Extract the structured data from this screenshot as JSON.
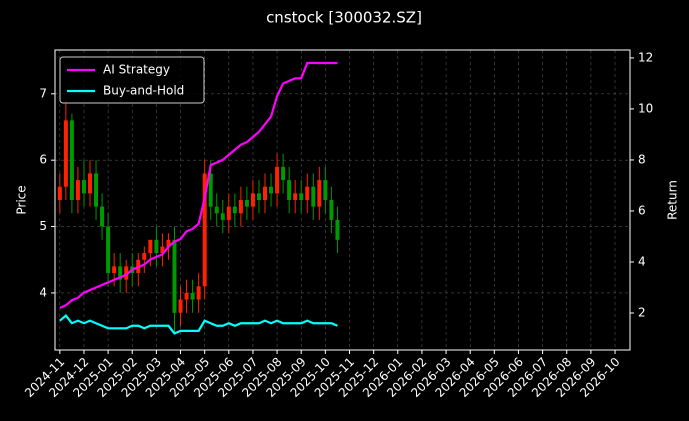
{
  "chart_data": {
    "type": "candlestick",
    "title": "cnstock [300032.SZ]",
    "ylabel": "Price",
    "y2label": "Return",
    "x": [
      0,
      0.25,
      0.5,
      0.75,
      1,
      1.25,
      1.5,
      1.75,
      2,
      2.25,
      2.5,
      2.75,
      3,
      3.25,
      3.5,
      3.75,
      4,
      4.25,
      4.5,
      4.75,
      5,
      5.25,
      5.5,
      5.75,
      6,
      6.25,
      6.5,
      6.75,
      7,
      7.25,
      7.5,
      7.75,
      8,
      8.25,
      8.5,
      8.75,
      9,
      9.25,
      9.5,
      9.75,
      10,
      10.25,
      10.5,
      10.75,
      11,
      11.25,
      11.5
    ],
    "open": [
      5.4,
      5.6,
      6.6,
      5.4,
      5.7,
      5.5,
      5.8,
      5.3,
      5.0,
      4.3,
      4.4,
      4.2,
      4.4,
      4.3,
      4.5,
      4.6,
      4.8,
      4.6,
      4.7,
      4.8,
      3.7,
      3.9,
      4.0,
      3.9,
      4.1,
      5.8,
      5.3,
      5.2,
      5.1,
      5.3,
      5.2,
      5.4,
      5.3,
      5.5,
      5.4,
      5.6,
      5.5,
      5.9,
      5.7,
      5.4,
      5.5,
      5.4,
      5.6,
      5.3,
      5.7,
      5.4,
      5.1
    ],
    "high": [
      5.8,
      6.9,
      6.7,
      5.9,
      6.0,
      6.0,
      6.0,
      5.5,
      5.2,
      4.6,
      4.6,
      4.5,
      4.6,
      4.6,
      4.7,
      4.8,
      5.0,
      4.9,
      4.9,
      5.0,
      4.1,
      4.2,
      4.2,
      4.3,
      6.0,
      6.0,
      5.5,
      5.4,
      5.5,
      5.5,
      5.6,
      5.6,
      5.7,
      5.7,
      5.8,
      5.8,
      6.1,
      6.1,
      5.9,
      5.7,
      5.7,
      5.8,
      5.8,
      5.9,
      5.9,
      5.6,
      5.3
    ],
    "low": [
      5.2,
      5.4,
      5.2,
      5.2,
      5.3,
      5.3,
      5.1,
      4.8,
      4.1,
      4.1,
      4.0,
      4.0,
      4.1,
      4.1,
      4.3,
      4.4,
      4.4,
      4.4,
      4.5,
      3.4,
      3.5,
      3.7,
      3.7,
      3.7,
      3.9,
      5.1,
      5.0,
      4.9,
      4.9,
      5.0,
      5.0,
      5.1,
      5.1,
      5.2,
      5.2,
      5.3,
      5.3,
      5.5,
      5.2,
      5.2,
      5.2,
      5.2,
      5.1,
      5.1,
      5.2,
      4.9,
      4.6
    ],
    "close": [
      5.6,
      6.6,
      5.4,
      5.7,
      5.5,
      5.8,
      5.3,
      5.0,
      4.3,
      4.4,
      4.2,
      4.4,
      4.3,
      4.5,
      4.6,
      4.8,
      4.6,
      4.7,
      4.8,
      3.7,
      3.9,
      4.0,
      3.9,
      4.1,
      5.8,
      5.3,
      5.2,
      5.1,
      5.3,
      5.2,
      5.4,
      5.3,
      5.5,
      5.4,
      5.6,
      5.5,
      5.9,
      5.7,
      5.4,
      5.5,
      5.4,
      5.6,
      5.3,
      5.7,
      5.4,
      5.1,
      4.8
    ],
    "up_color": "#ff2200",
    "down_color": "#009900",
    "series": [
      {
        "name": "AI Strategy",
        "color": "#ff00ff",
        "axis": "y2",
        "values": [
          2.2,
          2.3,
          2.5,
          2.6,
          2.8,
          2.9,
          3.0,
          3.1,
          3.2,
          3.3,
          3.4,
          3.5,
          3.7,
          3.8,
          3.9,
          4.1,
          4.2,
          4.3,
          4.6,
          4.8,
          4.9,
          5.2,
          5.3,
          5.5,
          6.5,
          7.8,
          7.9,
          8.0,
          8.2,
          8.4,
          8.6,
          8.7,
          8.9,
          9.1,
          9.4,
          9.7,
          10.5,
          11.0,
          11.1,
          11.2,
          11.2,
          11.8,
          11.8,
          11.8,
          11.8,
          11.8,
          11.8
        ]
      },
      {
        "name": "Buy-and-Hold",
        "color": "#00ffff",
        "axis": "y2",
        "values": [
          1.7,
          1.9,
          1.6,
          1.7,
          1.6,
          1.7,
          1.6,
          1.5,
          1.4,
          1.4,
          1.4,
          1.4,
          1.5,
          1.5,
          1.4,
          1.5,
          1.5,
          1.5,
          1.5,
          1.2,
          1.3,
          1.3,
          1.3,
          1.3,
          1.7,
          1.6,
          1.5,
          1.5,
          1.6,
          1.5,
          1.6,
          1.6,
          1.6,
          1.6,
          1.7,
          1.6,
          1.7,
          1.6,
          1.6,
          1.6,
          1.6,
          1.7,
          1.6,
          1.6,
          1.6,
          1.6,
          1.5
        ]
      }
    ],
    "ylim": [
      3.14,
      7.66
    ],
    "yticks": [
      4,
      5,
      6,
      7
    ],
    "y2lim": [
      0.55,
      12.31
    ],
    "y2ticks": [
      2,
      4,
      6,
      8,
      10,
      12
    ],
    "xlim": [
      -0.2,
      23.62
    ],
    "xticks": [
      {
        "value": 0,
        "label": "2024-11"
      },
      {
        "value": 1,
        "label": "2024-12"
      },
      {
        "value": 2,
        "label": "2025-01"
      },
      {
        "value": 3,
        "label": "2025-02"
      },
      {
        "value": 4,
        "label": "2025-03"
      },
      {
        "value": 5,
        "label": "2025-04"
      },
      {
        "value": 6,
        "label": "2025-05"
      },
      {
        "value": 7,
        "label": "2025-06"
      },
      {
        "value": 8,
        "label": "2025-07"
      },
      {
        "value": 9,
        "label": "2025-08"
      },
      {
        "value": 10,
        "label": "2025-09"
      },
      {
        "value": 11,
        "label": "2025-10"
      },
      {
        "value": 12,
        "label": "2025-11"
      },
      {
        "value": 13,
        "label": "2025-12"
      },
      {
        "value": 14,
        "label": "2026-01"
      },
      {
        "value": 15,
        "label": "2026-02"
      },
      {
        "value": 16,
        "label": "2026-03"
      },
      {
        "value": 17,
        "label": "2026-04"
      },
      {
        "value": 18,
        "label": "2026-05"
      },
      {
        "value": 19,
        "label": "2026-06"
      },
      {
        "value": 20,
        "label": "2026-07"
      },
      {
        "value": 21,
        "label": "2026-08"
      },
      {
        "value": 22,
        "label": "2026-09"
      },
      {
        "value": 23,
        "label": "2026-10"
      }
    ],
    "grid": true,
    "legend": "upper left"
  }
}
